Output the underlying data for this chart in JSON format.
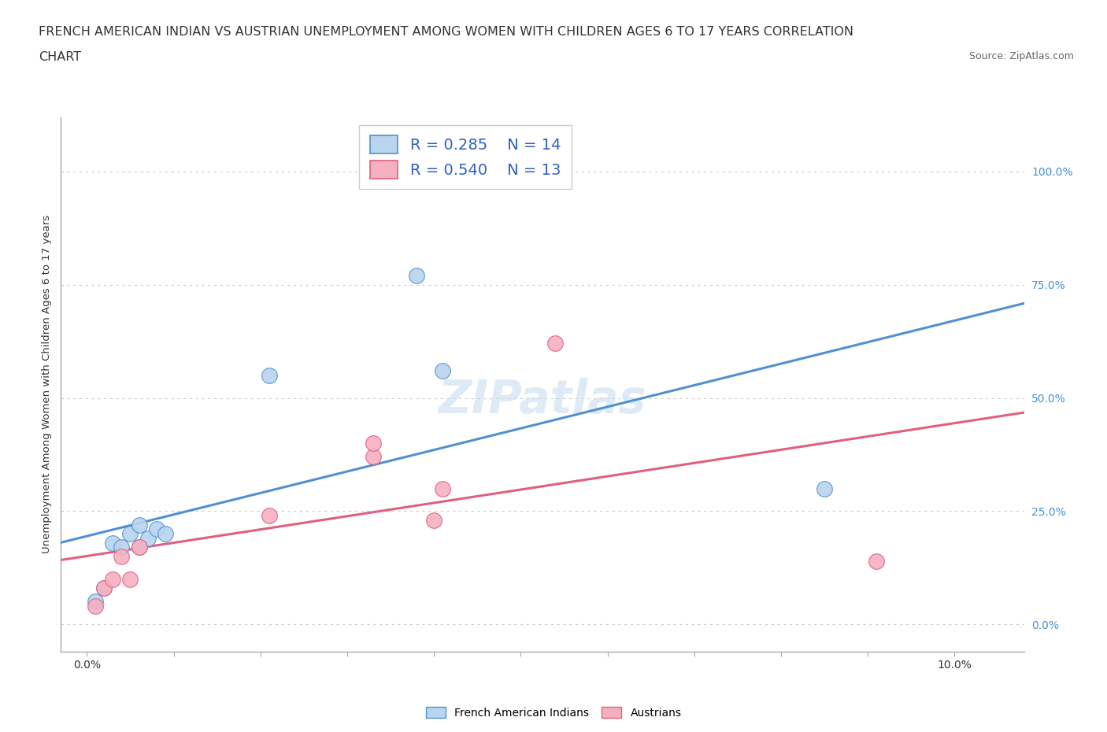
{
  "title_line1": "FRENCH AMERICAN INDIAN VS AUSTRIAN UNEMPLOYMENT AMONG WOMEN WITH CHILDREN AGES 6 TO 17 YEARS CORRELATION",
  "title_line2": "CHART",
  "source": "Source: ZipAtlas.com",
  "ylabel": "Unemployment Among Women with Children Ages 6 to 17 years",
  "xlim": [
    -0.003,
    0.108
  ],
  "ylim": [
    -0.06,
    1.12
  ],
  "ytick_positions": [
    0.0,
    0.25,
    0.5,
    0.75,
    1.0
  ],
  "ytick_labels": [
    "0.0%",
    "25.0%",
    "50.0%",
    "75.0%",
    "100.0%"
  ],
  "french_x": [
    0.001,
    0.002,
    0.003,
    0.004,
    0.005,
    0.006,
    0.006,
    0.007,
    0.008,
    0.009,
    0.021,
    0.038,
    0.041,
    0.085
  ],
  "french_y": [
    0.05,
    0.08,
    0.18,
    0.17,
    0.2,
    0.17,
    0.22,
    0.19,
    0.21,
    0.2,
    0.55,
    0.77,
    0.56,
    0.3
  ],
  "austrian_x": [
    0.001,
    0.002,
    0.003,
    0.004,
    0.005,
    0.006,
    0.021,
    0.033,
    0.033,
    0.04,
    0.041,
    0.054,
    0.091
  ],
  "austrian_y": [
    0.04,
    0.08,
    0.1,
    0.15,
    0.1,
    0.17,
    0.24,
    0.37,
    0.4,
    0.23,
    0.3,
    0.62,
    0.14
  ],
  "french_R": 0.285,
  "french_N": 14,
  "austrian_R": 0.54,
  "austrian_N": 13,
  "french_color": "#b8d4ee",
  "austrian_color": "#f5b0c0",
  "french_line_color": "#5090d0",
  "austrian_line_color": "#e06080",
  "watermark_color": "#c8dff0",
  "background_color": "#ffffff",
  "grid_color": "#cccccc",
  "title_fontsize": 11.5,
  "legend_text_color": "#3060c0",
  "ytick_color": "#4a90d9"
}
